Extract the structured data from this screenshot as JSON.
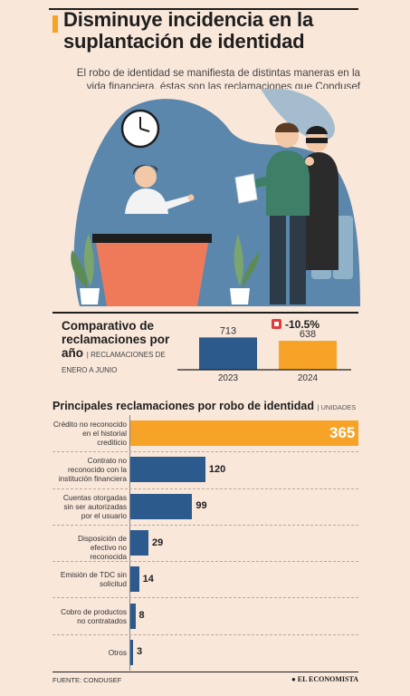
{
  "colors": {
    "accent": "#f6a327",
    "blue": "#2d5a8c",
    "background": "#f9e7da"
  },
  "header": {
    "title": "Disminuye incidencia en la suplantación de identidad",
    "intro": "El robo de identidad se manifiesta de distintas maneras en la vida financiera, éstas son las reclamaciones que Condusef recibió por un posible robo de identidad:"
  },
  "comparison": {
    "title": "Comparativo de reclamaciones por año",
    "subtitle": "| RECLAMACIONES DE ENERO A JUNIO",
    "change_label": "-10.5%"
  },
  "main": {
    "title": "Principales reclamaciones por robo de identidad",
    "units": "| UNIDADES"
  },
  "footer": {
    "source": "FUENTE: CONDUSEF",
    "brand": "EL ECONOMISTA"
  },
  "chart_data": [
    {
      "type": "bar",
      "categories": [
        "2023",
        "2024"
      ],
      "values": [
        713,
        638
      ],
      "colors": [
        "#2d5a8c",
        "#f6a327"
      ],
      "title": "Comparativo de reclamaciones por año"
    },
    {
      "type": "bar",
      "orientation": "horizontal",
      "categories": [
        "Crédito no reconocido en el historial crediticio",
        "Contrato no reconocido con la institución financiera",
        "Cuentas otorgadas sin ser autorizadas por el usuario",
        "Disposición de efectivo no reconocida",
        "Emisión de TDC sin solicitud",
        "Cobro de productos no contratados",
        "Otros"
      ],
      "values": [
        365,
        120,
        99,
        29,
        14,
        8,
        3
      ],
      "title": "Principales reclamaciones por robo de identidad",
      "units": "UNIDADES",
      "highlight_color": "#f6a327",
      "bar_color": "#2d5a8c"
    }
  ]
}
